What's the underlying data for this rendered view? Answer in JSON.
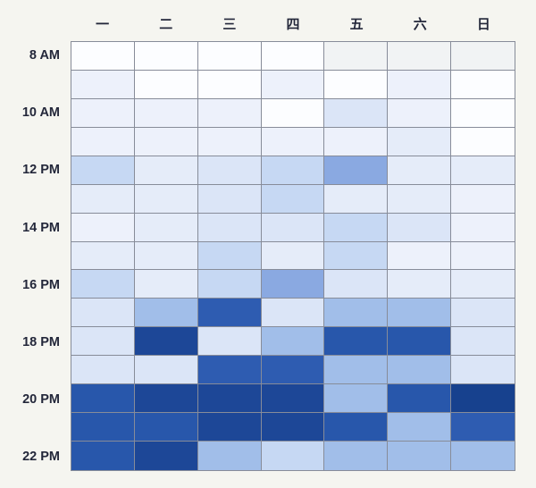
{
  "page": {
    "background": "#f5f5f0",
    "label_color": "#23273a",
    "grid_line_color": "#878c99"
  },
  "chart_data": {
    "type": "heatmap",
    "title": "",
    "xlabel": "",
    "ylabel": "",
    "x_labels": [
      "一",
      "二",
      "三",
      "四",
      "五",
      "六",
      "日"
    ],
    "visible_y_labels": [
      "8 AM",
      "10 AM",
      "12 PM",
      "14 PM",
      "16 PM",
      "18 PM",
      "20 PM",
      "22 PM"
    ],
    "y_labels": [
      "8 AM",
      "",
      "10 AM",
      "",
      "12 PM",
      "",
      "14 PM",
      "",
      "16 PM",
      "",
      "18 PM",
      "",
      "20 PM",
      "",
      "22 PM"
    ],
    "rows": 15,
    "cols": 7,
    "grid": "on",
    "legend": "none",
    "palette": [
      "#fcfdff",
      "#f1f3f4",
      "#edf1fb",
      "#e5ecf9",
      "#dbe5f7",
      "#c6d8f3",
      "#a1bee9",
      "#8aa9e1",
      "#2e5cb1",
      "#2857ab",
      "#1d4797",
      "#17418e"
    ],
    "levels": [
      [
        0,
        0,
        0,
        0,
        1,
        1,
        1
      ],
      [
        2,
        0,
        0,
        2,
        0,
        2,
        0
      ],
      [
        2,
        2,
        2,
        0,
        4,
        2,
        0
      ],
      [
        2,
        2,
        2,
        2,
        2,
        3,
        0
      ],
      [
        5,
        3,
        4,
        5,
        7,
        3,
        3
      ],
      [
        3,
        3,
        4,
        5,
        3,
        3,
        2
      ],
      [
        2,
        3,
        4,
        4,
        5,
        4,
        2
      ],
      [
        3,
        3,
        5,
        3,
        5,
        2,
        2
      ],
      [
        5,
        3,
        5,
        7,
        4,
        3,
        3
      ],
      [
        4,
        6,
        8,
        4,
        6,
        6,
        4
      ],
      [
        4,
        10,
        4,
        6,
        9,
        9,
        4
      ],
      [
        4,
        4,
        8,
        8,
        6,
        6,
        4
      ],
      [
        9,
        10,
        10,
        10,
        6,
        9,
        11
      ],
      [
        9,
        9,
        10,
        10,
        9,
        6,
        8
      ],
      [
        9,
        10,
        6,
        5,
        6,
        6,
        6
      ]
    ]
  }
}
